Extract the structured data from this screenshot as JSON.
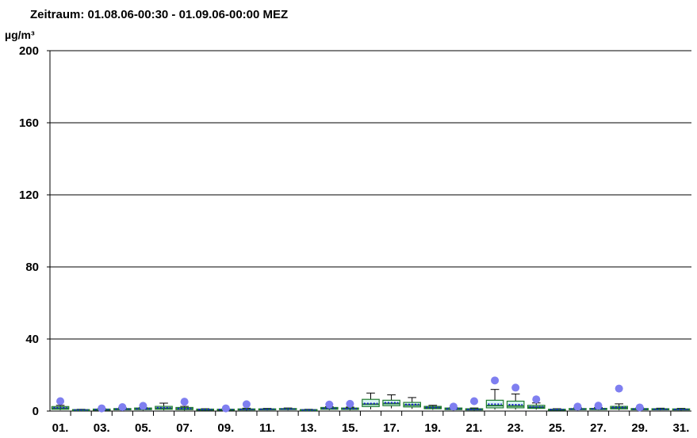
{
  "chart_data": {
    "type": "boxplot",
    "title": "Zeitraum: 01.08.06-00:30 - 01.09.06-00:00 MEZ",
    "ylabel": "µg/m³",
    "ylim": [
      0,
      200
    ],
    "yticks": [
      "0",
      "40",
      "80",
      "120",
      "160",
      "200"
    ],
    "xtick_labels": [
      "01.",
      "03.",
      "05.",
      "07.",
      "09.",
      "11.",
      "13.",
      "15.",
      "17.",
      "19.",
      "21.",
      "23.",
      "25.",
      "27.",
      "29.",
      "31."
    ],
    "days": [
      {
        "day": 1,
        "min": 0.5,
        "q1": 1.0,
        "median": 1.6,
        "mean": 1.8,
        "q3": 2.5,
        "max": 3.2,
        "outlier": 5.5
      },
      {
        "day": 2,
        "min": 0.2,
        "q1": 0.4,
        "median": 0.6,
        "mean": 0.6,
        "q3": 0.8,
        "max": 1.0,
        "outlier": null
      },
      {
        "day": 3,
        "min": 0.2,
        "q1": 0.5,
        "median": 0.8,
        "mean": 0.8,
        "q3": 1.1,
        "max": 1.4,
        "outlier": 1.5
      },
      {
        "day": 4,
        "min": 0.3,
        "q1": 0.7,
        "median": 1.0,
        "mean": 1.1,
        "q3": 1.4,
        "max": 1.8,
        "outlier": 2.2
      },
      {
        "day": 5,
        "min": 0.3,
        "q1": 0.8,
        "median": 1.1,
        "mean": 1.2,
        "q3": 1.7,
        "max": 2.0,
        "outlier": 2.9
      },
      {
        "day": 6,
        "min": 0.4,
        "q1": 1.0,
        "median": 1.6,
        "mean": 1.8,
        "q3": 2.6,
        "max": 4.4,
        "outlier": null
      },
      {
        "day": 7,
        "min": 0.3,
        "q1": 0.8,
        "median": 1.2,
        "mean": 1.4,
        "q3": 2.0,
        "max": 2.6,
        "outlier": 5.2
      },
      {
        "day": 8,
        "min": 0.2,
        "q1": 0.5,
        "median": 0.8,
        "mean": 0.8,
        "q3": 1.1,
        "max": 1.3,
        "outlier": null
      },
      {
        "day": 9,
        "min": 0.2,
        "q1": 0.5,
        "median": 0.8,
        "mean": 0.8,
        "q3": 1.0,
        "max": 1.2,
        "outlier": 1.5
      },
      {
        "day": 10,
        "min": 0.3,
        "q1": 0.6,
        "median": 0.9,
        "mean": 0.9,
        "q3": 1.2,
        "max": 1.6,
        "outlier": 3.8
      },
      {
        "day": 11,
        "min": 0.4,
        "q1": 0.8,
        "median": 1.0,
        "mean": 1.0,
        "q3": 1.2,
        "max": 1.5,
        "outlier": null
      },
      {
        "day": 12,
        "min": 0.4,
        "q1": 0.8,
        "median": 1.1,
        "mean": 1.1,
        "q3": 1.4,
        "max": 1.7,
        "outlier": null
      },
      {
        "day": 13,
        "min": 0.2,
        "q1": 0.4,
        "median": 0.6,
        "mean": 0.6,
        "q3": 0.8,
        "max": 1.0,
        "outlier": null
      },
      {
        "day": 14,
        "min": 0.5,
        "q1": 1.0,
        "median": 1.4,
        "mean": 1.5,
        "q3": 2.0,
        "max": 2.4,
        "outlier": 3.6
      },
      {
        "day": 15,
        "min": 0.4,
        "q1": 0.9,
        "median": 1.2,
        "mean": 1.3,
        "q3": 1.7,
        "max": 2.2,
        "outlier": 4.0
      },
      {
        "day": 16,
        "min": 1.0,
        "q1": 2.5,
        "median": 3.8,
        "mean": 4.2,
        "q3": 6.5,
        "max": 10.0,
        "outlier": null
      },
      {
        "day": 17,
        "min": 1.5,
        "q1": 3.0,
        "median": 4.2,
        "mean": 4.6,
        "q3": 6.0,
        "max": 9.0,
        "outlier": null
      },
      {
        "day": 18,
        "min": 1.2,
        "q1": 2.3,
        "median": 3.3,
        "mean": 3.6,
        "q3": 4.8,
        "max": 7.5,
        "outlier": null
      },
      {
        "day": 19,
        "min": 0.7,
        "q1": 1.3,
        "median": 1.9,
        "mean": 2.0,
        "q3": 2.6,
        "max": 3.2,
        "outlier": null
      },
      {
        "day": 20,
        "min": 0.4,
        "q1": 0.8,
        "median": 1.2,
        "mean": 1.2,
        "q3": 1.7,
        "max": 2.0,
        "outlier": 2.5
      },
      {
        "day": 21,
        "min": 0.3,
        "q1": 0.6,
        "median": 0.9,
        "mean": 0.9,
        "q3": 1.3,
        "max": 1.7,
        "outlier": 5.5
      },
      {
        "day": 22,
        "min": 0.8,
        "q1": 1.8,
        "median": 3.0,
        "mean": 3.8,
        "q3": 6.0,
        "max": 12.0,
        "outlier": 17.0
      },
      {
        "day": 23,
        "min": 0.8,
        "q1": 1.8,
        "median": 2.8,
        "mean": 3.5,
        "q3": 5.5,
        "max": 9.5,
        "outlier": 13.0
      },
      {
        "day": 24,
        "min": 0.8,
        "q1": 1.5,
        "median": 2.2,
        "mean": 2.3,
        "q3": 3.2,
        "max": 4.5,
        "outlier": 6.5
      },
      {
        "day": 25,
        "min": 0.3,
        "q1": 0.6,
        "median": 0.8,
        "mean": 0.8,
        "q3": 1.0,
        "max": 1.3,
        "outlier": null
      },
      {
        "day": 26,
        "min": 0.4,
        "q1": 0.8,
        "median": 1.0,
        "mean": 1.1,
        "q3": 1.4,
        "max": 1.8,
        "outlier": 2.5
      },
      {
        "day": 27,
        "min": 0.5,
        "q1": 0.8,
        "median": 1.1,
        "mean": 1.2,
        "q3": 1.5,
        "max": 2.0,
        "outlier": 3.0
      },
      {
        "day": 28,
        "min": 0.5,
        "q1": 1.2,
        "median": 1.8,
        "mean": 2.0,
        "q3": 2.6,
        "max": 4.0,
        "outlier": 12.5
      },
      {
        "day": 29,
        "min": 0.4,
        "q1": 0.7,
        "median": 1.0,
        "mean": 1.1,
        "q3": 1.4,
        "max": 1.8,
        "outlier": 2.0
      },
      {
        "day": 30,
        "min": 0.4,
        "q1": 0.7,
        "median": 1.0,
        "mean": 1.0,
        "q3": 1.3,
        "max": 1.6,
        "outlier": null
      },
      {
        "day": 31,
        "min": 0.3,
        "q1": 0.6,
        "median": 0.9,
        "mean": 0.9,
        "q3": 1.2,
        "max": 1.5,
        "outlier": null
      }
    ],
    "colors": {
      "outlier": "#7f7ff0",
      "mean": "#1a1acc",
      "median": "#1f7a2e",
      "box_fill": "#d8f5f2",
      "box_stroke": "#1f7a2e",
      "grid": "#000000"
    },
    "grid": true
  }
}
